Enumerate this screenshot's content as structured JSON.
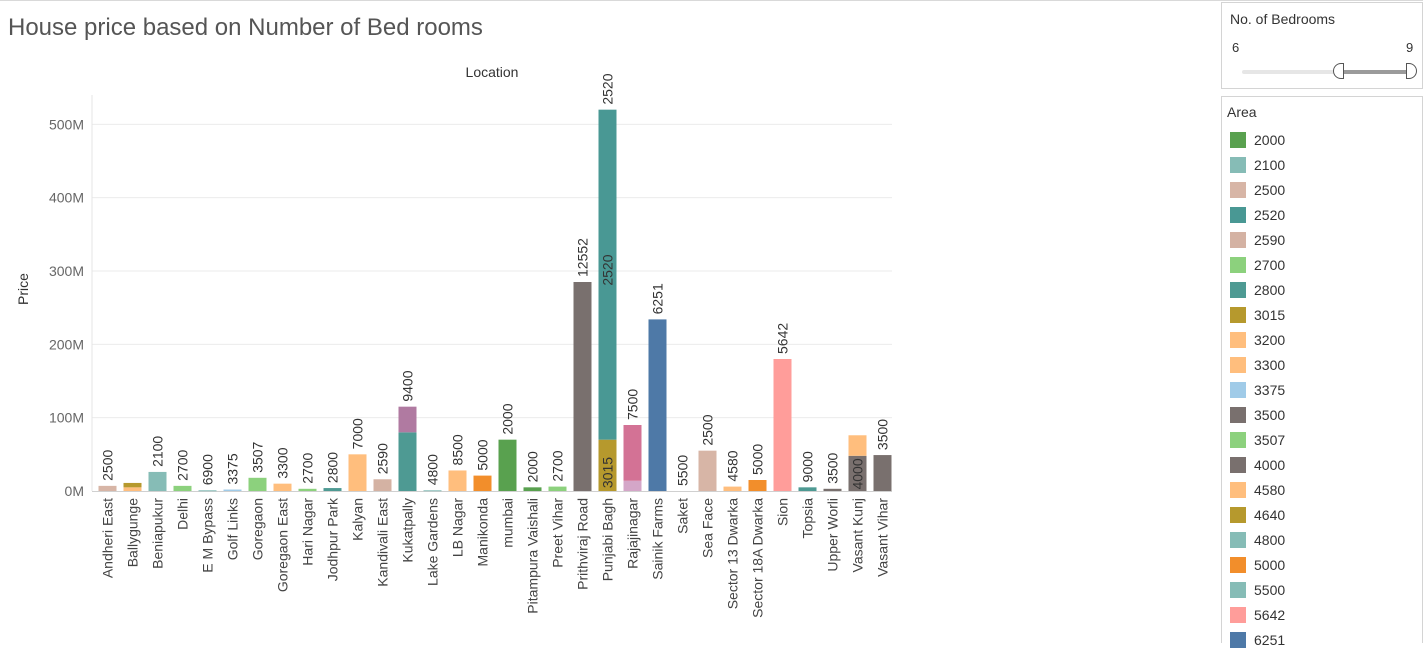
{
  "title": "House price based on Number of Bed rooms",
  "filter": {
    "title": "No. of Bedrooms",
    "min_label": "6",
    "max_label": "9",
    "range": [
      6,
      9
    ],
    "selected": [
      8,
      9
    ]
  },
  "legend": {
    "title": "Area",
    "items": [
      {
        "label": "2000",
        "color": "#59a14f"
      },
      {
        "label": "2100",
        "color": "#86bcb6"
      },
      {
        "label": "2500",
        "color": "#d7b5a6"
      },
      {
        "label": "2520",
        "color": "#499894"
      },
      {
        "label": "2590",
        "color": "#d4b2a3"
      },
      {
        "label": "2700",
        "color": "#8cd17d"
      },
      {
        "label": "2800",
        "color": "#4e9a93"
      },
      {
        "label": "3015",
        "color": "#b6992d"
      },
      {
        "label": "3200",
        "color": "#ffbe7d"
      },
      {
        "label": "3300",
        "color": "#ffbe7d"
      },
      {
        "label": "3375",
        "color": "#a0cbe8"
      },
      {
        "label": "3500",
        "color": "#79706e"
      },
      {
        "label": "3507",
        "color": "#8cd17d"
      },
      {
        "label": "4000",
        "color": "#79706e"
      },
      {
        "label": "4580",
        "color": "#ffbe7d"
      },
      {
        "label": "4640",
        "color": "#b6992d"
      },
      {
        "label": "4800",
        "color": "#86bcb6"
      },
      {
        "label": "5000",
        "color": "#f28e2b"
      },
      {
        "label": "5500",
        "color": "#86bcb6"
      },
      {
        "label": "5642",
        "color": "#ff9d9a"
      },
      {
        "label": "6251",
        "color": "#4e79a7"
      }
    ]
  },
  "chart_data": {
    "type": "bar",
    "stacked": true,
    "title": "House price based on Number of Bed rooms",
    "xlabel": "Location",
    "ylabel": "Price",
    "ylim": [
      0,
      540000000
    ],
    "yticks": [
      0,
      100000000,
      200000000,
      300000000,
      400000000,
      500000000
    ],
    "ytick_labels": [
      "0M",
      "100M",
      "200M",
      "300M",
      "400M",
      "500M"
    ],
    "grid": true,
    "legend": "right",
    "categories": [
      "Andheri East",
      "Ballygunge",
      "Beniapukur",
      "Delhi",
      "E M Bypass",
      "Golf Links",
      "Goregaon",
      "Goregaon East",
      "Hari Nagar",
      "Jodhpur Park",
      "Kalyan",
      "Kandivali East",
      "Kukatpally",
      "Lake Gardens",
      "LB Nagar",
      "Manikonda",
      "mumbai",
      "Pitampura Vaishali",
      "Preet Vihar",
      "Prithviraj Road",
      "Punjabi Bagh",
      "Rajajinagar",
      "Sainik Farms",
      "Saket",
      "Sea Face",
      "Sector 13 Dwarka",
      "Sector 18A Dwarka",
      "Sion",
      "Topsia",
      "Upper Worli",
      "Vasant Kunj",
      "Vasant Vihar"
    ],
    "bars": [
      {
        "label": "2500",
        "segments": [
          {
            "value": 7000000,
            "color": "#d7b5a6"
          }
        ]
      },
      {
        "label": "",
        "segments": [
          {
            "value": 5000000,
            "color": "#ffbe7d"
          },
          {
            "value": 6000000,
            "color": "#b6992d"
          }
        ]
      },
      {
        "label": "2100",
        "segments": [
          {
            "value": 26000000,
            "color": "#86bcb6"
          }
        ]
      },
      {
        "label": "2700",
        "segments": [
          {
            "value": 7000000,
            "color": "#8cd17d"
          }
        ]
      },
      {
        "label": "6900",
        "segments": [
          {
            "value": 1000000,
            "color": "#86bcb6"
          }
        ]
      },
      {
        "label": "3375",
        "segments": [
          {
            "value": 2000000,
            "color": "#a0cbe8"
          }
        ]
      },
      {
        "label": "3507",
        "segments": [
          {
            "value": 18000000,
            "color": "#8cd17d"
          }
        ]
      },
      {
        "label": "3300",
        "segments": [
          {
            "value": 10000000,
            "color": "#ffbe7d"
          }
        ]
      },
      {
        "label": "2700",
        "segments": [
          {
            "value": 3000000,
            "color": "#8cd17d"
          }
        ]
      },
      {
        "label": "2800",
        "segments": [
          {
            "value": 4000000,
            "color": "#4e9a93"
          }
        ]
      },
      {
        "label": "7000",
        "segments": [
          {
            "value": 50000000,
            "color": "#ffbe7d"
          }
        ]
      },
      {
        "label": "2590",
        "segments": [
          {
            "value": 16000000,
            "color": "#d4b2a3"
          }
        ]
      },
      {
        "label": "9400",
        "segments": [
          {
            "value": 80000000,
            "color": "#4e9a93"
          },
          {
            "value": 35000000,
            "color": "#b07aa1"
          }
        ]
      },
      {
        "label": "4800",
        "segments": [
          {
            "value": 1000000,
            "color": "#86bcb6"
          }
        ]
      },
      {
        "label": "8500",
        "segments": [
          {
            "value": 28000000,
            "color": "#ffbe7d"
          }
        ]
      },
      {
        "label": "5000",
        "segments": [
          {
            "value": 21000000,
            "color": "#f28e2b"
          }
        ]
      },
      {
        "label": "2000",
        "segments": [
          {
            "value": 70000000,
            "color": "#59a14f"
          }
        ]
      },
      {
        "label": "2000",
        "segments": [
          {
            "value": 5000000,
            "color": "#59a14f"
          }
        ]
      },
      {
        "label": "2700",
        "segments": [
          {
            "value": 6000000,
            "color": "#8cd17d"
          }
        ]
      },
      {
        "label": "12552",
        "segments": [
          {
            "value": 285000000,
            "color": "#79706e"
          }
        ]
      },
      {
        "label": "2520",
        "segments": [
          {
            "value": 70000000,
            "color": "#b6992d"
          },
          {
            "value": 450000000,
            "color": "#499894"
          }
        ]
      },
      {
        "label": "7500",
        "segments": [
          {
            "value": 14000000,
            "color": "#d4a6c8"
          },
          {
            "value": 76000000,
            "color": "#d37295"
          }
        ]
      },
      {
        "label": "6251",
        "segments": [
          {
            "value": 234000000,
            "color": "#4e79a7"
          }
        ]
      },
      {
        "label": "5500",
        "segments": [
          {
            "value": 0,
            "color": "#86bcb6"
          }
        ]
      },
      {
        "label": "2500",
        "segments": [
          {
            "value": 55000000,
            "color": "#d7b5a6"
          }
        ]
      },
      {
        "label": "4580",
        "segments": [
          {
            "value": 6000000,
            "color": "#ffbe7d"
          }
        ]
      },
      {
        "label": "5000",
        "segments": [
          {
            "value": 15000000,
            "color": "#f28e2b"
          }
        ]
      },
      {
        "label": "5642",
        "segments": [
          {
            "value": 180000000,
            "color": "#ff9d9a"
          }
        ]
      },
      {
        "label": "9000",
        "segments": [
          {
            "value": 5000000,
            "color": "#4e9a93"
          }
        ]
      },
      {
        "label": "3500",
        "segments": [
          {
            "value": 3000000,
            "color": "#79706e"
          }
        ]
      },
      {
        "label": "",
        "segments": [
          {
            "value": 48000000,
            "color": "#79706e"
          },
          {
            "value": 28000000,
            "color": "#ffbe7d"
          }
        ]
      },
      {
        "label": "3500",
        "segments": [
          {
            "value": 49000000,
            "color": "#79706e"
          }
        ]
      }
    ],
    "inner_labels": [
      {
        "bar": 20,
        "text": "3015"
      },
      {
        "bar": 20,
        "text": "2520"
      },
      {
        "bar": 30,
        "text": "4000"
      }
    ]
  }
}
